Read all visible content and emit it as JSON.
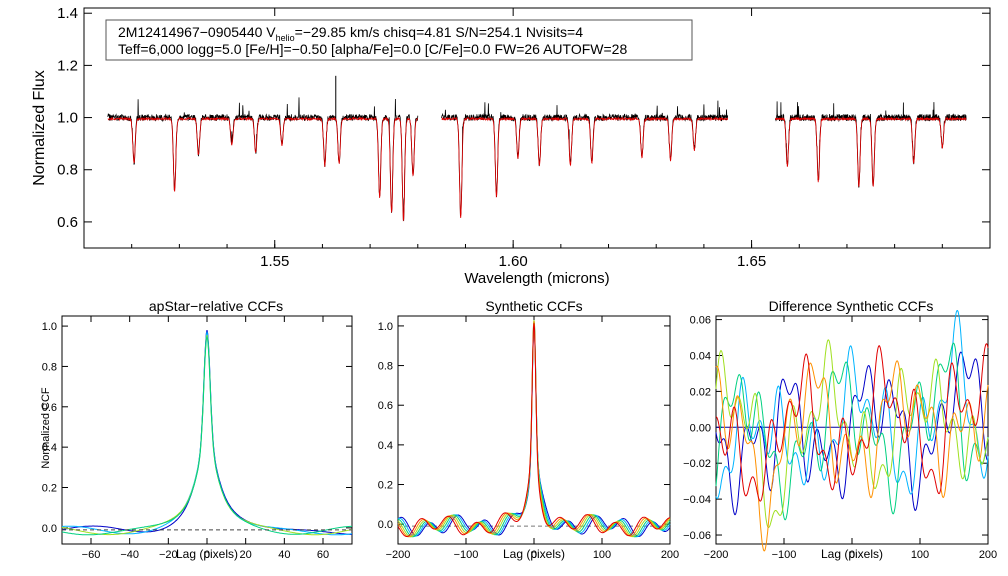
{
  "top": {
    "ylabel": "Normalized Flux",
    "xlabel": "Wavelength (microns)",
    "xticks": [
      "1.55",
      "1.60",
      "1.65"
    ],
    "yticks": [
      "0.6",
      "0.8",
      "1.0",
      "1.2",
      "1.4"
    ],
    "info": {
      "line1_a": "2M12414967−0905440  V",
      "line1_sub": "helio",
      "line1_b": "=−29.85 km/s  chisq=4.81  S/N=254.1  Nvisits=4",
      "line2": "Teff=6,000 logg=5.0 [Fe/H]=−0.50 [alpha/Fe]=0.0 [C/Fe]=0.0 FW=26 AUTOFW=28"
    }
  },
  "panels": [
    {
      "title": "apStar−relative CCFs",
      "ylabel": "Normalized CCF",
      "xlabel": "Lag (pixels)",
      "xticks": [
        "−60",
        "−40",
        "−20",
        "0",
        "20",
        "40",
        "60"
      ],
      "yticks": [
        "0.0",
        "0.2",
        "0.4",
        "0.6",
        "0.8",
        "1.0"
      ]
    },
    {
      "title": "Synthetic CCFs",
      "ylabel": "",
      "xlabel": "Lag (pixels)",
      "xticks": [
        "−200",
        "−100",
        "0",
        "100",
        "200"
      ],
      "yticks": [
        "0.0",
        "0.2",
        "0.4",
        "0.6",
        "0.8",
        "1.0"
      ]
    },
    {
      "title": "Difference Synthetic CCFs",
      "ylabel": "",
      "xlabel": "Lag (pixels)",
      "xticks": [
        "−200",
        "−100",
        "0",
        "100",
        "200"
      ],
      "yticks": [
        "−0.06",
        "−0.04",
        "−0.02",
        "0.00",
        "0.02",
        "0.04",
        "0.06"
      ]
    }
  ],
  "colors": {
    "observed": "#000000",
    "model": "#e00000",
    "visits": [
      "#0000c8",
      "#00b4ff",
      "#00d080",
      "#a0e020",
      "#ff9000",
      "#e00000"
    ]
  },
  "chart_data": [
    {
      "type": "line",
      "xlabel": "Wavelength (microns)",
      "ylabel": "Normalized Flux",
      "xlim": [
        1.51,
        1.7
      ],
      "ylim": [
        0.5,
        1.42
      ],
      "segments": [
        [
          1.515,
          1.58
        ],
        [
          1.585,
          1.645
        ],
        [
          1.655,
          1.695
        ]
      ],
      "series": [],
      "absorption_lines": [
        {
          "x": 1.5205,
          "depth": 0.17
        },
        {
          "x": 1.529,
          "depth": 0.28
        },
        {
          "x": 1.534,
          "depth": 0.14
        },
        {
          "x": 1.541,
          "depth": 0.1
        },
        {
          "x": 1.546,
          "depth": 0.13
        },
        {
          "x": 1.5515,
          "depth": 0.1
        },
        {
          "x": 1.5605,
          "depth": 0.18
        },
        {
          "x": 1.5635,
          "depth": 0.17
        },
        {
          "x": 1.572,
          "depth": 0.3
        },
        {
          "x": 1.5745,
          "depth": 0.36
        },
        {
          "x": 1.577,
          "depth": 0.39
        },
        {
          "x": 1.579,
          "depth": 0.22
        },
        {
          "x": 1.589,
          "depth": 0.38
        },
        {
          "x": 1.5965,
          "depth": 0.3
        },
        {
          "x": 1.601,
          "depth": 0.15
        },
        {
          "x": 1.6055,
          "depth": 0.18
        },
        {
          "x": 1.612,
          "depth": 0.18
        },
        {
          "x": 1.6165,
          "depth": 0.17
        },
        {
          "x": 1.627,
          "depth": 0.15
        },
        {
          "x": 1.633,
          "depth": 0.16
        },
        {
          "x": 1.638,
          "depth": 0.12
        },
        {
          "x": 1.6575,
          "depth": 0.18
        },
        {
          "x": 1.664,
          "depth": 0.24
        },
        {
          "x": 1.6725,
          "depth": 0.26
        },
        {
          "x": 1.6755,
          "depth": 0.26
        },
        {
          "x": 1.684,
          "depth": 0.17
        },
        {
          "x": 1.69,
          "depth": 0.11
        }
      ]
    },
    {
      "type": "line",
      "title": "apStar−relative CCFs",
      "xlabel": "Lag (pixels)",
      "ylabel": "Normalized CCF",
      "xlim": [
        -75,
        75
      ],
      "ylim": [
        -0.08,
        1.05
      ],
      "series": [
        {
          "values": "peak 0.99 at lag 0, core width ~2, wings ~12, baseline -0.03 to 0.02"
        },
        {
          "values": "peak 0.98 at lag 0"
        },
        {
          "values": "peak 0.97 at lag 0"
        },
        {
          "values": "peak 0.96 at lag 0"
        }
      ]
    },
    {
      "type": "line",
      "title": "Synthetic CCFs",
      "xlabel": "Lag (pixels)",
      "xlim": [
        -200,
        200
      ],
      "ylim": [
        -0.1,
        1.05
      ],
      "series": [
        {
          "values": "peak 1.0 at lag 0, oscillating baseline ~0.0 ± 0.06"
        }
      ]
    },
    {
      "type": "line",
      "title": "Difference Synthetic CCFs",
      "xlabel": "Lag (pixels)",
      "xlim": [
        -200,
        200
      ],
      "ylim": [
        -0.065,
        0.062
      ],
      "series": [
        {
          "values": "fluctuating residuals between -0.06 and 0.055"
        }
      ]
    }
  ]
}
